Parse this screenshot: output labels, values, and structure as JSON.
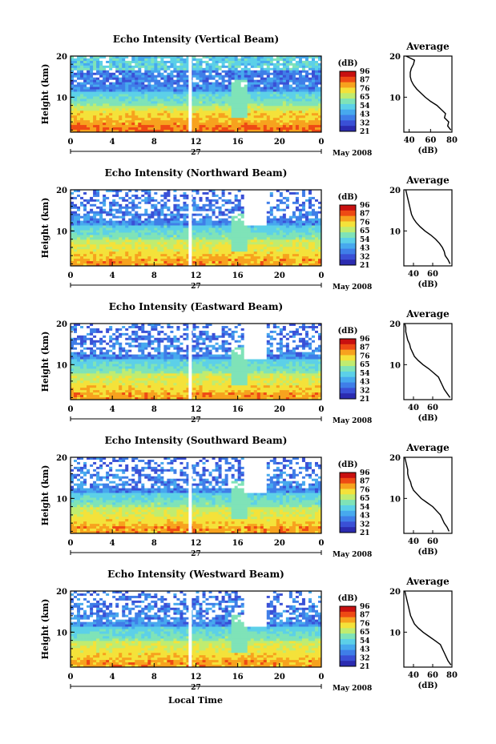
{
  "figure": {
    "xlabel": "Local Time",
    "date_label": "May 2008",
    "day_label": "27"
  },
  "colors": {
    "colormap": [
      "#2b2bb0",
      "#3a50d6",
      "#3f7ee8",
      "#47a9ee",
      "#5cd0e8",
      "#7fe3b8",
      "#c0ec70",
      "#f4e23a",
      "#f7a21e",
      "#ee4a14",
      "#c81010"
    ],
    "line": "#000000",
    "gap": "#ffffff"
  },
  "chart_data": [
    {
      "type": "heatmap",
      "title": "Echo Intensity (Vertical Beam)",
      "ylabel": "Height (km)",
      "xlim": [
        0,
        24
      ],
      "ylim": [
        1.5,
        20
      ],
      "xticks": [
        "0",
        "4",
        "8",
        "12",
        "16",
        "20",
        "0"
      ],
      "yticks": [
        "10",
        "20"
      ],
      "colorbar": {
        "label": "(dB)",
        "ticks": [
          "96",
          "87",
          "76",
          "65",
          "54",
          "43",
          "32",
          "21"
        ]
      },
      "profile": {
        "title": "Average",
        "xlabel": "(dB)",
        "xlim": [
          35,
          80
        ],
        "xticks": [
          "40",
          "60",
          "80"
        ],
        "yticks": [
          "10",
          "20"
        ],
        "height_km": [
          2,
          3,
          4,
          5,
          6,
          7,
          8,
          9,
          10,
          11,
          12,
          13,
          14,
          15,
          16,
          17,
          18,
          19,
          20
        ],
        "db": [
          79,
          76,
          77,
          73,
          74,
          70,
          66,
          60,
          55,
          51,
          47,
          44,
          42,
          41,
          41,
          42,
          44,
          45,
          37
        ]
      }
    },
    {
      "type": "heatmap",
      "title": "Echo Intensity (Northward Beam)",
      "ylabel": "Height (km)",
      "xlim": [
        0,
        24
      ],
      "ylim": [
        1.5,
        20
      ],
      "xticks": [
        "0",
        "4",
        "8",
        "12",
        "16",
        "20",
        "0"
      ],
      "yticks": [
        "10",
        "20"
      ],
      "colorbar": {
        "label": "(dB)",
        "ticks": [
          "96",
          "87",
          "76",
          "65",
          "54",
          "43",
          "32",
          "21"
        ]
      },
      "profile": {
        "title": "Average",
        "xlabel": "(dB)",
        "xlim": [
          30,
          80
        ],
        "xticks": [
          "40",
          "60"
        ],
        "yticks": [
          "10",
          "20"
        ],
        "height_km": [
          2,
          3,
          4,
          5,
          6,
          7,
          8,
          9,
          10,
          11,
          12,
          13,
          14,
          15,
          16,
          17,
          18,
          19,
          20
        ],
        "db": [
          78,
          76,
          73,
          72,
          70,
          67,
          63,
          58,
          52,
          47,
          43,
          40,
          38,
          37,
          36,
          35,
          34,
          33,
          32
        ]
      }
    },
    {
      "type": "heatmap",
      "title": "Echo Intensity (Eastward Beam)",
      "ylabel": "Height (km)",
      "xlim": [
        0,
        24
      ],
      "ylim": [
        1.5,
        20
      ],
      "xticks": [
        "0",
        "4",
        "8",
        "12",
        "16",
        "20",
        "0"
      ],
      "yticks": [
        "10",
        "20"
      ],
      "colorbar": {
        "label": "(dB)",
        "ticks": [
          "96",
          "87",
          "76",
          "65",
          "54",
          "43",
          "32",
          "21"
        ]
      },
      "profile": {
        "title": "Average",
        "xlabel": "(dB)",
        "xlim": [
          30,
          80
        ],
        "xticks": [
          "40",
          "60"
        ],
        "yticks": [
          "10",
          "20"
        ],
        "height_km": [
          2,
          3,
          4,
          5,
          6,
          7,
          8,
          9,
          10,
          11,
          12,
          13,
          14,
          15,
          16,
          17,
          18,
          19,
          20
        ],
        "db": [
          78,
          75,
          72,
          70,
          68,
          66,
          61,
          56,
          50,
          45,
          41,
          39,
          37,
          36,
          34,
          33,
          32,
          32,
          31
        ]
      }
    },
    {
      "type": "heatmap",
      "title": "Echo Intensity (Southward Beam)",
      "ylabel": "Height (km)",
      "xlim": [
        0,
        24
      ],
      "ylim": [
        1.5,
        20
      ],
      "xticks": [
        "0",
        "4",
        "8",
        "12",
        "16",
        "20",
        "0"
      ],
      "yticks": [
        "10",
        "20"
      ],
      "colorbar": {
        "label": "(dB)",
        "ticks": [
          "96",
          "87",
          "76",
          "65",
          "54",
          "43",
          "32",
          "21"
        ]
      },
      "profile": {
        "title": "Average",
        "xlabel": "(dB)",
        "xlim": [
          30,
          80
        ],
        "xticks": [
          "40",
          "60"
        ],
        "yticks": [
          "10",
          "20"
        ],
        "height_km": [
          2,
          3,
          4,
          5,
          6,
          7,
          8,
          9,
          10,
          11,
          12,
          13,
          14,
          15,
          16,
          17,
          18,
          19,
          20
        ],
        "db": [
          77,
          75,
          72,
          70,
          68,
          64,
          60,
          54,
          48,
          44,
          40,
          38,
          37,
          35,
          34,
          34,
          33,
          32,
          31
        ]
      }
    },
    {
      "type": "heatmap",
      "title": "Echo Intensity (Westward Beam)",
      "ylabel": "Height (km)",
      "xlim": [
        0,
        24
      ],
      "ylim": [
        1.5,
        20
      ],
      "xticks": [
        "0",
        "4",
        "8",
        "12",
        "16",
        "20",
        "0"
      ],
      "yticks": [
        "10",
        "20"
      ],
      "colorbar": {
        "label": "(dB)",
        "ticks": [
          "96",
          "87",
          "76",
          "65",
          "54",
          "43",
          "32",
          "21"
        ]
      },
      "profile": {
        "title": "Average",
        "xlabel": "(dB)",
        "xlim": [
          30,
          80
        ],
        "xticks": [
          "40",
          "60",
          "80"
        ],
        "yticks": [
          "10",
          "20"
        ],
        "height_km": [
          2,
          3,
          4,
          5,
          6,
          7,
          8,
          9,
          10,
          11,
          12,
          13,
          14,
          15,
          16,
          17,
          18,
          19,
          20
        ],
        "db": [
          79,
          76,
          74,
          72,
          70,
          68,
          62,
          56,
          50,
          45,
          41,
          39,
          37,
          36,
          35,
          34,
          33,
          32,
          31
        ]
      }
    }
  ]
}
